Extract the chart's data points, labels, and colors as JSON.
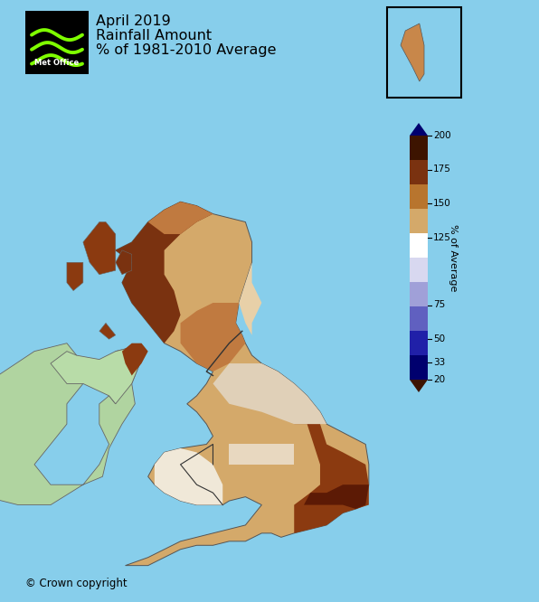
{
  "title_line1": "April 2019",
  "title_line2": "Rainfall Amount",
  "title_line3": "% of 1981-2010 Average",
  "copyright_text": "© Crown copyright",
  "background_color": "#87CEEB",
  "colorbar_colors_top_to_bot": [
    "#00006e",
    "#2020a8",
    "#6060c0",
    "#a0a0d8",
    "#d8d8f0",
    "#ffffff",
    "#d4a96a",
    "#b8752e",
    "#7a3210",
    "#3d1400"
  ],
  "colorbar_tick_vals": [
    200,
    175,
    150,
    125,
    75,
    50,
    33,
    20
  ],
  "colorbar_label": "% of Average",
  "title_fontsize": 11.5,
  "copyright_fontsize": 8.5,
  "fig_width": 5.96,
  "fig_height": 6.66,
  "dpi": 100
}
